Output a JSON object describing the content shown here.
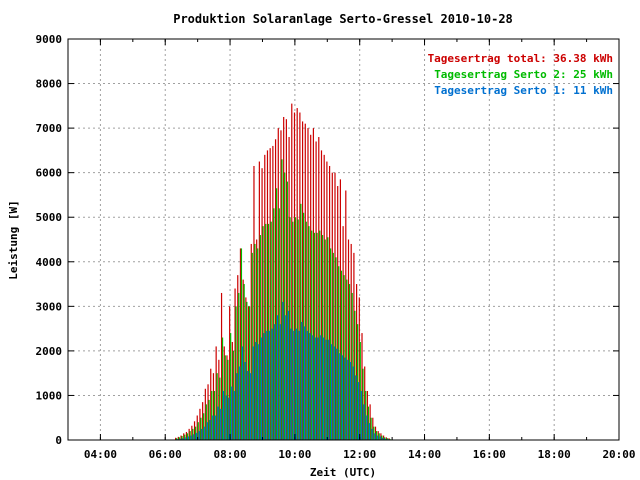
{
  "chart_data": {
    "type": "bar",
    "title": "Produktion Solaranlage Serto-Gressel 2010-10-28",
    "xlabel": "Zeit (UTC)",
    "ylabel": "Leistung [W]",
    "x_ticks": [
      "04:00",
      "06:00",
      "08:00",
      "10:00",
      "12:00",
      "14:00",
      "16:00",
      "18:00",
      "20:00"
    ],
    "y_ticks": [
      "0",
      "1000",
      "2000",
      "3000",
      "4000",
      "5000",
      "6000",
      "7000",
      "8000",
      "9000"
    ],
    "xlim_hours": [
      3,
      20
    ],
    "ylim": [
      0,
      9000
    ],
    "grid": true,
    "legend_position": "top-right",
    "bar_interval_minutes": 5,
    "x_start_time": "06:20",
    "series": [
      {
        "name": "Tagesertrag total: 36.38 kWh",
        "color": "#cc0000",
        "values": [
          50,
          70,
          100,
          150,
          180,
          250,
          320,
          420,
          550,
          700,
          850,
          1150,
          1250,
          1600,
          1500,
          2100,
          1800,
          3300,
          2100,
          1900,
          3000,
          2200,
          3400,
          3700,
          4300,
          3600,
          3200,
          3000,
          4400,
          6150,
          4500,
          6250,
          6100,
          6400,
          6500,
          6550,
          6600,
          6750,
          7000,
          6950,
          7250,
          7200,
          6800,
          7550,
          7350,
          7450,
          7350,
          7150,
          7100,
          7000,
          6850,
          7000,
          6700,
          6800,
          6500,
          6400,
          6250,
          6150,
          6000,
          6000,
          5700,
          5850,
          4800,
          5600,
          4500,
          4400,
          4200,
          3500,
          3200,
          2400,
          1650,
          1100,
          800,
          500,
          300,
          200,
          150,
          100,
          60,
          40
        ]
      },
      {
        "name": "Tagesertrag Serto 2: 25 kWh",
        "color": "#00bb00",
        "values": [
          40,
          60,
          90,
          120,
          150,
          200,
          250,
          300,
          400,
          500,
          600,
          800,
          900,
          1100,
          1100,
          1500,
          1400,
          2300,
          1900,
          1800,
          2400,
          2000,
          3000,
          3300,
          4300,
          3500,
          3100,
          3000,
          4200,
          4400,
          4300,
          4600,
          4800,
          4850,
          4850,
          4900,
          5200,
          5650,
          5200,
          6300,
          6000,
          5800,
          5000,
          4900,
          5000,
          4950,
          5300,
          5100,
          4900,
          4800,
          4700,
          4650,
          4650,
          4700,
          4600,
          4500,
          4550,
          4300,
          4200,
          4100,
          3900,
          3800,
          3700,
          3600,
          3500,
          3300,
          2900,
          2600,
          2200,
          1600,
          1100,
          750,
          500,
          300,
          200,
          150,
          100,
          60,
          40,
          20
        ]
      },
      {
        "name": "Tagesertrag Serto 1: 11 kWh",
        "color": "#0070d0",
        "values": [
          20,
          30,
          40,
          60,
          80,
          100,
          130,
          160,
          200,
          250,
          300,
          400,
          450,
          550,
          550,
          750,
          700,
          1100,
          1000,
          950,
          1200,
          1100,
          1500,
          1650,
          2100,
          1750,
          1550,
          1500,
          2100,
          2200,
          2150,
          2300,
          2400,
          2450,
          2450,
          2500,
          2600,
          2800,
          2600,
          3100,
          2800,
          2900,
          2500,
          2450,
          2500,
          2450,
          2650,
          2550,
          2450,
          2400,
          2350,
          2300,
          2300,
          2350,
          2300,
          2250,
          2250,
          2150,
          2100,
          2050,
          1950,
          1900,
          1850,
          1800,
          1750,
          1650,
          1450,
          1300,
          1100,
          800,
          550,
          380,
          250,
          150,
          100,
          80,
          50,
          30,
          20,
          10
        ]
      }
    ]
  }
}
